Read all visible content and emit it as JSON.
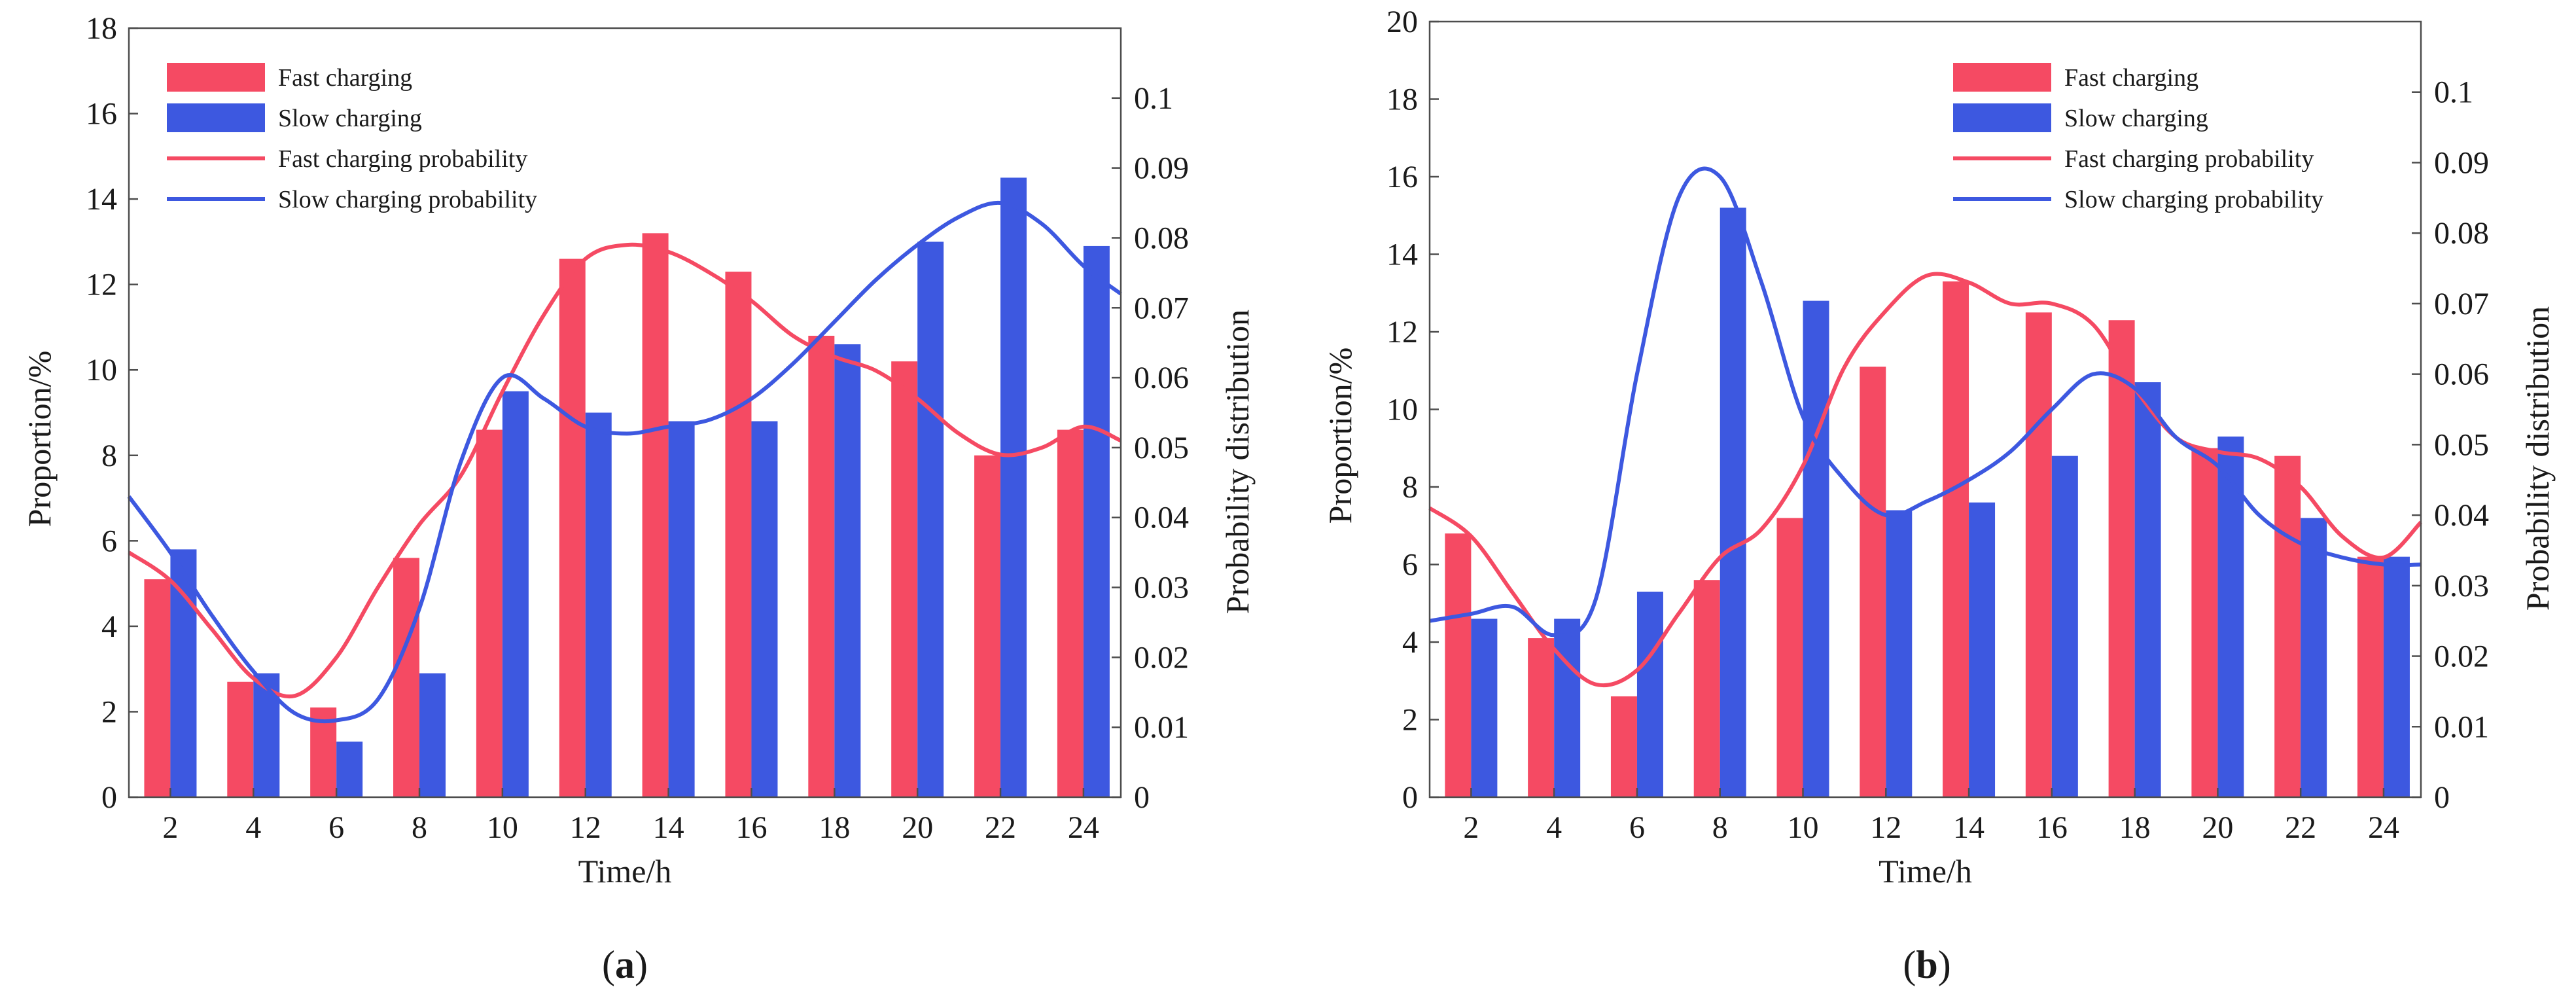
{
  "chart_data": [
    {
      "type": "bar",
      "panel_label": "a",
      "xlabel": "Time/h",
      "ylabel": "Proportion/%",
      "y2label": "Probability distribution",
      "ylim": [
        0,
        18
      ],
      "y2lim": [
        0,
        0.11
      ],
      "yticks": [
        0,
        2,
        4,
        6,
        8,
        10,
        12,
        14,
        16,
        18
      ],
      "y2ticks": [
        0,
        0.01,
        0.02,
        0.03,
        0.04,
        0.05,
        0.06,
        0.07,
        0.08,
        0.09,
        0.1
      ],
      "ytick_labels": [
        "0",
        "2",
        "4",
        "6",
        "8",
        "10",
        "12",
        "14",
        "16",
        "18"
      ],
      "y2tick_labels": [
        "0",
        "0.01",
        "0.02",
        "0.03",
        "0.04",
        "0.05",
        "0.06",
        "0.07",
        "0.08",
        "0.09",
        "0.1"
      ],
      "xlim": [
        1,
        24.9
      ],
      "categories": [
        2,
        4,
        6,
        8,
        10,
        12,
        14,
        16,
        18,
        20,
        22,
        24
      ],
      "category_labels": [
        "2",
        "4",
        "6",
        "8",
        "10",
        "12",
        "14",
        "16",
        "18",
        "20",
        "22",
        "24"
      ],
      "series": [
        {
          "name": "Fast charging",
          "kind": "bar",
          "color": "#f54a63",
          "values": [
            5.1,
            2.7,
            2.1,
            5.6,
            8.6,
            12.6,
            13.2,
            12.3,
            10.8,
            10.2,
            8.0,
            8.6
          ]
        },
        {
          "name": "Slow charging",
          "kind": "bar",
          "color": "#3d58e0",
          "values": [
            5.8,
            2.9,
            1.3,
            2.9,
            9.5,
            9.0,
            8.8,
            8.8,
            10.6,
            13.0,
            14.5,
            12.9
          ]
        }
      ],
      "lines": [
        {
          "name": "Fast charging probability",
          "color": "#f54a63",
          "x": [
            1,
            2,
            3,
            4,
            5,
            6,
            7,
            8,
            9,
            10,
            11,
            12,
            13,
            14,
            15,
            16,
            17,
            18,
            19,
            20,
            21,
            22,
            23,
            24,
            24.9
          ],
          "y": [
            0.035,
            0.031,
            0.024,
            0.017,
            0.0145,
            0.02,
            0.03,
            0.039,
            0.046,
            0.058,
            0.069,
            0.077,
            0.079,
            0.078,
            0.075,
            0.071,
            0.066,
            0.063,
            0.061,
            0.057,
            0.052,
            0.049,
            0.05,
            0.053,
            0.051
          ]
        },
        {
          "name": "Slow charging probability",
          "color": "#3d58e0",
          "x": [
            1,
            2,
            3,
            4,
            5,
            6,
            7,
            8,
            9,
            10,
            11,
            12,
            13,
            14,
            15,
            16,
            17,
            18,
            19,
            20,
            21,
            22,
            23,
            24,
            24.9
          ],
          "y": [
            0.043,
            0.035,
            0.026,
            0.018,
            0.012,
            0.011,
            0.014,
            0.027,
            0.048,
            0.06,
            0.057,
            0.053,
            0.052,
            0.053,
            0.054,
            0.057,
            0.062,
            0.068,
            0.074,
            0.079,
            0.083,
            0.085,
            0.082,
            0.076,
            0.072
          ]
        }
      ],
      "legend": {
        "position": "top-left",
        "items": [
          "Fast charging",
          "Slow charging",
          "Fast charging probability",
          "Slow charging probability"
        ]
      }
    },
    {
      "type": "bar",
      "panel_label": "b",
      "xlabel": "Time/h",
      "ylabel": "Proportion/%",
      "y2label": "Probability distribution",
      "ylim": [
        0,
        20
      ],
      "y2lim": [
        0,
        0.11
      ],
      "yticks": [
        0,
        2,
        4,
        6,
        8,
        10,
        12,
        14,
        16,
        18,
        20
      ],
      "y2ticks": [
        0,
        0.01,
        0.02,
        0.03,
        0.04,
        0.05,
        0.06,
        0.07,
        0.08,
        0.09,
        0.1
      ],
      "ytick_labels": [
        "0",
        "2",
        "4",
        "6",
        "8",
        "10",
        "12",
        "14",
        "16",
        "18",
        "20"
      ],
      "y2tick_labels": [
        "0",
        "0.01",
        "0.02",
        "0.03",
        "0.04",
        "0.05",
        "0.06",
        "0.07",
        "0.08",
        "0.09",
        "0.1"
      ],
      "xlim": [
        1,
        24.9
      ],
      "categories": [
        2,
        4,
        6,
        8,
        10,
        12,
        14,
        16,
        18,
        20,
        22,
        24
      ],
      "category_labels": [
        "2",
        "4",
        "6",
        "8",
        "10",
        "12",
        "14",
        "16",
        "18",
        "20",
        "22",
        "24"
      ],
      "series": [
        {
          "name": "Fast charging",
          "kind": "bar",
          "color": "#f54a63",
          "values": [
            6.8,
            4.1,
            2.6,
            5.6,
            7.2,
            11.1,
            13.3,
            12.5,
            12.3,
            9.0,
            8.8,
            6.2
          ]
        },
        {
          "name": "Slow charging",
          "kind": "bar",
          "color": "#3d58e0",
          "values": [
            4.6,
            4.6,
            5.3,
            15.2,
            12.8,
            7.4,
            7.6,
            8.8,
            10.7,
            9.3,
            7.2,
            6.2
          ]
        }
      ],
      "lines": [
        {
          "name": "Fast charging probability",
          "color": "#f54a63",
          "x": [
            1,
            2,
            3,
            4,
            5,
            6,
            7,
            8,
            9,
            10,
            11,
            12,
            13,
            14,
            15,
            16,
            17,
            18,
            19,
            20,
            21,
            22,
            23,
            24,
            24.9
          ],
          "y": [
            0.041,
            0.037,
            0.029,
            0.021,
            0.016,
            0.018,
            0.026,
            0.034,
            0.038,
            0.047,
            0.061,
            0.069,
            0.074,
            0.073,
            0.07,
            0.07,
            0.067,
            0.058,
            0.051,
            0.049,
            0.048,
            0.044,
            0.037,
            0.034,
            0.039
          ]
        },
        {
          "name": "Slow charging probability",
          "color": "#3d58e0",
          "x": [
            1,
            2,
            3,
            4,
            5,
            6,
            7,
            8,
            9,
            10,
            11,
            12,
            13,
            14,
            15,
            16,
            17,
            18,
            19,
            20,
            21,
            22,
            23,
            24,
            24.9
          ],
          "y": [
            0.025,
            0.026,
            0.027,
            0.023,
            0.028,
            0.06,
            0.085,
            0.088,
            0.073,
            0.054,
            0.045,
            0.04,
            0.042,
            0.045,
            0.049,
            0.055,
            0.06,
            0.058,
            0.051,
            0.047,
            0.04,
            0.036,
            0.034,
            0.033,
            0.033
          ]
        }
      ],
      "legend": {
        "position": "top-right",
        "items": [
          "Fast charging",
          "Slow charging",
          "Fast charging probability",
          "Slow charging probability"
        ]
      }
    }
  ]
}
